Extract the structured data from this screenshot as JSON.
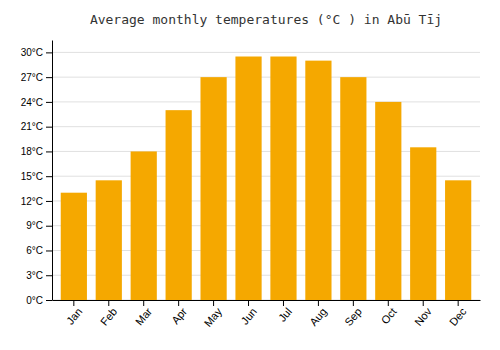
{
  "chart_data": {
    "type": "bar",
    "title": "Average monthly temperatures (°C ) in Abū Tīj",
    "categories": [
      "Jan",
      "Feb",
      "Mar",
      "Apr",
      "May",
      "Jun",
      "Jul",
      "Aug",
      "Sep",
      "Oct",
      "Nov",
      "Dec"
    ],
    "values": [
      13.0,
      14.5,
      18.0,
      23.0,
      27.0,
      29.5,
      29.5,
      29.0,
      27.0,
      24.0,
      18.5,
      14.5
    ],
    "color": "#F5A800",
    "ylim": [
      0,
      31.5
    ],
    "yticks": [
      {
        "value": 0,
        "label": "0°C"
      },
      {
        "value": 3,
        "label": "3°C"
      },
      {
        "value": 6,
        "label": "6°C"
      },
      {
        "value": 9,
        "label": "9°C"
      },
      {
        "value": 12,
        "label": "12°C"
      },
      {
        "value": 15,
        "label": "15°C"
      },
      {
        "value": 18,
        "label": "18°C"
      },
      {
        "value": 21,
        "label": "21°C"
      },
      {
        "value": 24,
        "label": "24°C"
      },
      {
        "value": 27,
        "label": "27°C"
      },
      {
        "value": 30,
        "label": "30°C"
      }
    ],
    "grid": true
  }
}
